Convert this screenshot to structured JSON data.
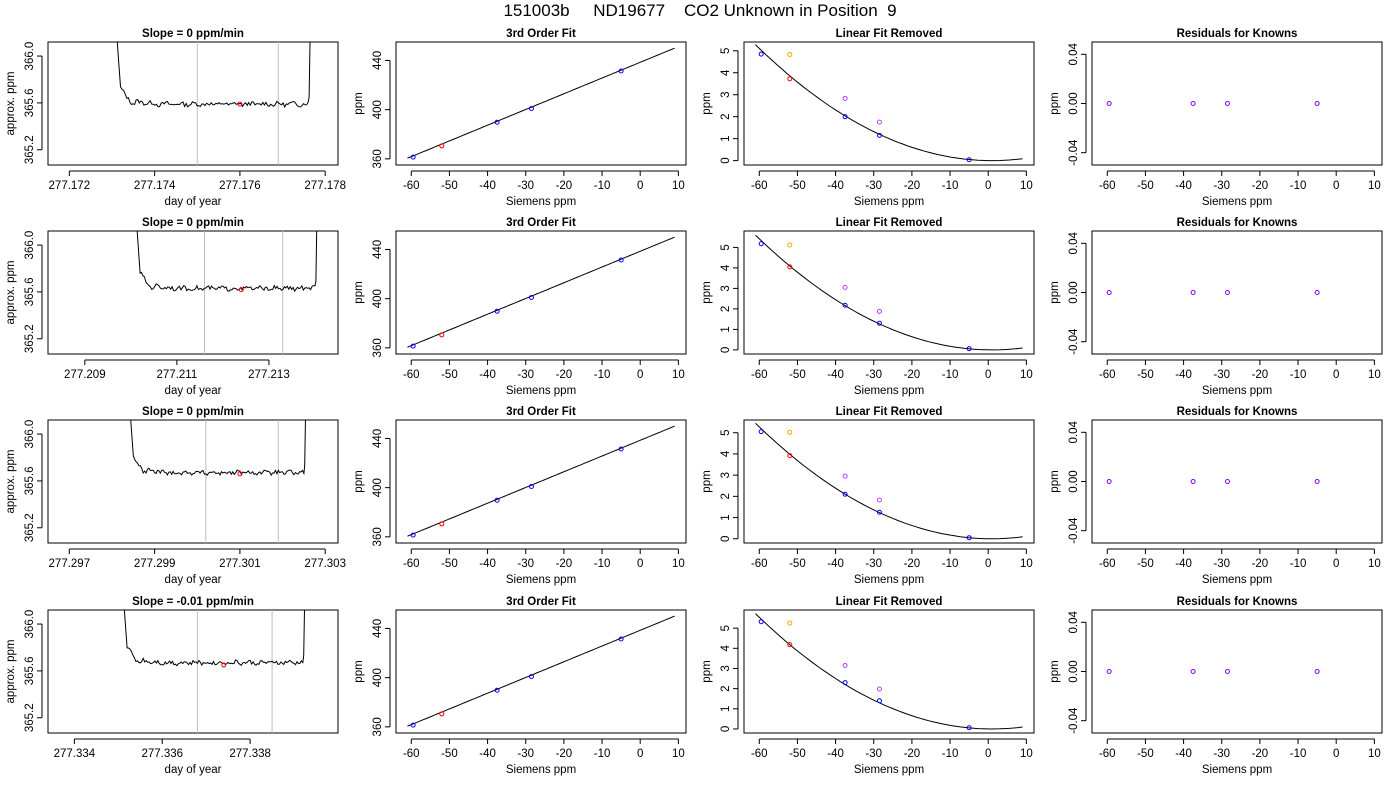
{
  "figure_title": "151003b     ND19677    CO2 Unknown in Position  9",
  "colors": {
    "trace": "#000000",
    "vline": "#bebebe",
    "red_point": "#ff0000",
    "blue_point": "#0000ff",
    "orange_point": "#ffa500",
    "magenta_point": "#c040ff",
    "resid_point": "#8000ff"
  },
  "chart_data": [
    {
      "type": "line",
      "title": "Slope =  0  ppm/min",
      "xlabel": "day of year",
      "ylabel": "approx. ppm",
      "xlim": [
        277.1715,
        277.1783
      ],
      "ylim": [
        365.07,
        366.12
      ],
      "xticks": [
        277.172,
        277.174,
        277.176,
        277.178
      ],
      "yticks": [
        365.2,
        365.6,
        366.0
      ],
      "vlines": [
        277.175,
        277.1769
      ],
      "start": 277.1732,
      "end": 277.1776,
      "level": 365.59,
      "marker": {
        "x": 277.176,
        "y": 365.59
      }
    },
    {
      "type": "line",
      "title": "3rd Order Fit",
      "xlabel": "Siemens ppm",
      "ylabel": "ppm",
      "xlim": [
        -64,
        12
      ],
      "ylim": [
        355,
        455
      ],
      "xticks": [
        -60,
        -50,
        -40,
        -30,
        -20,
        -10,
        0,
        10
      ],
      "yticks": [
        360,
        400,
        440
      ],
      "curve": {
        "x": [
          -61,
          9
        ],
        "y": [
          360.5,
          450.0
        ]
      },
      "red_points": [
        {
          "x": -52,
          "y": 370.5
        }
      ],
      "blue_points": [
        {
          "x": -59.5,
          "y": 361.4
        },
        {
          "x": -37.5,
          "y": 389.8
        },
        {
          "x": -28.5,
          "y": 400.9
        },
        {
          "x": -5,
          "y": 431.4
        }
      ]
    },
    {
      "type": "scatter",
      "title": "Linear Fit Removed",
      "xlabel": "Siemens ppm",
      "ylabel": "ppm",
      "xlim": [
        -64,
        12
      ],
      "ylim": [
        -0.2,
        5.4
      ],
      "xticks": [
        -60,
        -50,
        -40,
        -30,
        -20,
        -10,
        0,
        10
      ],
      "yticks": [
        0,
        1,
        2,
        3,
        4,
        5
      ],
      "curve": {
        "x": [
          -61,
          9
        ],
        "y": [
          5.28,
          0.12
        ]
      },
      "red_points": [
        {
          "x": -52,
          "y": 3.72
        }
      ],
      "blue_points": [
        {
          "x": -59.5,
          "y": 4.85
        },
        {
          "x": -37.5,
          "y": 2.0
        },
        {
          "x": -28.5,
          "y": 1.15
        },
        {
          "x": -5,
          "y": 0.04
        }
      ],
      "orange_points": [
        {
          "x": -52,
          "y": 4.83
        }
      ],
      "magenta_points": [
        {
          "x": -37.5,
          "y": 2.83
        },
        {
          "x": -28.5,
          "y": 1.75
        }
      ]
    },
    {
      "type": "scatter",
      "title": "Residuals for Knowns",
      "xlabel": "Siemens ppm",
      "ylabel": "ppm",
      "xlim": [
        -64,
        12
      ],
      "ylim": [
        -0.05,
        0.05
      ],
      "xticks": [
        -60,
        -50,
        -40,
        -30,
        -20,
        -10,
        0,
        10
      ],
      "yticks": [
        -0.04,
        0.0,
        0.04
      ],
      "points": [
        {
          "x": -59.5,
          "y": 0
        },
        {
          "x": -37.5,
          "y": 0
        },
        {
          "x": -28.5,
          "y": 0
        },
        {
          "x": -5,
          "y": 0
        }
      ]
    },
    {
      "type": "line",
      "title": "Slope =  0  ppm/min",
      "xlabel": "day of year",
      "ylabel": "approx. ppm",
      "xlim": [
        277.2082,
        277.2145
      ],
      "ylim": [
        365.07,
        366.12
      ],
      "xticks": [
        277.209,
        277.211,
        277.213
      ],
      "yticks": [
        365.2,
        365.6,
        366.0
      ],
      "vlines": [
        277.2116,
        277.2133
      ],
      "start": 277.2102,
      "end": 277.214,
      "level": 365.63,
      "marker": {
        "x": 277.2124,
        "y": 365.62
      }
    },
    {
      "type": "line",
      "title": "3rd Order Fit",
      "xlabel": "Siemens ppm",
      "ylabel": "ppm",
      "xlim": [
        -64,
        12
      ],
      "ylim": [
        355,
        455
      ],
      "xticks": [
        -60,
        -50,
        -40,
        -30,
        -20,
        -10,
        0,
        10
      ],
      "yticks": [
        360,
        400,
        440
      ],
      "curve": {
        "x": [
          -61,
          9
        ],
        "y": [
          360.5,
          450.0
        ]
      },
      "red_points": [
        {
          "x": -52,
          "y": 370.5
        }
      ],
      "blue_points": [
        {
          "x": -59.5,
          "y": 361.4
        },
        {
          "x": -37.5,
          "y": 389.8
        },
        {
          "x": -28.5,
          "y": 400.9
        },
        {
          "x": -5,
          "y": 431.4
        }
      ]
    },
    {
      "type": "scatter",
      "title": "Linear Fit Removed",
      "xlabel": "Siemens ppm",
      "ylabel": "ppm",
      "xlim": [
        -64,
        12
      ],
      "ylim": [
        -0.2,
        5.8
      ],
      "xticks": [
        -60,
        -50,
        -40,
        -30,
        -20,
        -10,
        0,
        10
      ],
      "yticks": [
        0,
        1,
        2,
        3,
        4,
        5
      ],
      "curve": {
        "x": [
          -61,
          9
        ],
        "y": [
          5.6,
          0.14
        ]
      },
      "red_points": [
        {
          "x": -52,
          "y": 4.05
        }
      ],
      "blue_points": [
        {
          "x": -59.5,
          "y": 5.18
        },
        {
          "x": -37.5,
          "y": 2.18
        },
        {
          "x": -28.5,
          "y": 1.3
        },
        {
          "x": -5,
          "y": 0.06
        }
      ],
      "orange_points": [
        {
          "x": -52,
          "y": 5.12
        }
      ],
      "magenta_points": [
        {
          "x": -37.5,
          "y": 3.05
        },
        {
          "x": -28.5,
          "y": 1.88
        }
      ]
    },
    {
      "type": "scatter",
      "title": "Residuals for Knowns",
      "xlabel": "Siemens ppm",
      "ylabel": "ppm",
      "xlim": [
        -64,
        12
      ],
      "ylim": [
        -0.05,
        0.05
      ],
      "xticks": [
        -60,
        -50,
        -40,
        -30,
        -20,
        -10,
        0,
        10
      ],
      "yticks": [
        -0.04,
        0.0,
        0.04
      ],
      "points": [
        {
          "x": -59.5,
          "y": 0
        },
        {
          "x": -37.5,
          "y": 0
        },
        {
          "x": -28.5,
          "y": 0
        },
        {
          "x": -5,
          "y": 0
        }
      ]
    },
    {
      "type": "line",
      "title": "Slope =  0  ppm/min",
      "xlabel": "day of year",
      "ylabel": "approx. ppm",
      "xlim": [
        277.2965,
        277.3033
      ],
      "ylim": [
        365.07,
        366.12
      ],
      "xticks": [
        277.297,
        277.299,
        277.301,
        277.303
      ],
      "yticks": [
        365.2,
        365.6,
        366.0
      ],
      "vlines": [
        277.3002,
        277.3019
      ],
      "start": 277.2985,
      "end": 277.3025,
      "level": 365.67,
      "marker": {
        "x": 277.301,
        "y": 365.66
      }
    },
    {
      "type": "line",
      "title": "3rd Order Fit",
      "xlabel": "Siemens ppm",
      "ylabel": "ppm",
      "xlim": [
        -64,
        12
      ],
      "ylim": [
        355,
        455
      ],
      "xticks": [
        -60,
        -50,
        -40,
        -30,
        -20,
        -10,
        0,
        10
      ],
      "yticks": [
        360,
        400,
        440
      ],
      "curve": {
        "x": [
          -61,
          9
        ],
        "y": [
          360.5,
          450.0
        ]
      },
      "red_points": [
        {
          "x": -52,
          "y": 370.5
        }
      ],
      "blue_points": [
        {
          "x": -59.5,
          "y": 361.4
        },
        {
          "x": -37.5,
          "y": 389.8
        },
        {
          "x": -28.5,
          "y": 400.9
        },
        {
          "x": -5,
          "y": 431.4
        }
      ]
    },
    {
      "type": "scatter",
      "title": "Linear Fit Removed",
      "xlabel": "Siemens ppm",
      "ylabel": "ppm",
      "xlim": [
        -64,
        12
      ],
      "ylim": [
        -0.2,
        5.6
      ],
      "xticks": [
        -60,
        -50,
        -40,
        -30,
        -20,
        -10,
        0,
        10
      ],
      "yticks": [
        0,
        1,
        2,
        3,
        4,
        5
      ],
      "curve": {
        "x": [
          -61,
          9
        ],
        "y": [
          5.45,
          0.13
        ]
      },
      "red_points": [
        {
          "x": -52,
          "y": 3.92
        }
      ],
      "blue_points": [
        {
          "x": -59.5,
          "y": 5.05
        },
        {
          "x": -37.5,
          "y": 2.1
        },
        {
          "x": -28.5,
          "y": 1.25
        },
        {
          "x": -5,
          "y": 0.05
        }
      ],
      "orange_points": [
        {
          "x": -52,
          "y": 5.02
        }
      ],
      "magenta_points": [
        {
          "x": -37.5,
          "y": 2.95
        },
        {
          "x": -28.5,
          "y": 1.82
        }
      ]
    },
    {
      "type": "scatter",
      "title": "Residuals for Knowns",
      "xlabel": "Siemens ppm",
      "ylabel": "ppm",
      "xlim": [
        -64,
        12
      ],
      "ylim": [
        -0.05,
        0.05
      ],
      "xticks": [
        -60,
        -50,
        -40,
        -30,
        -20,
        -10,
        0,
        10
      ],
      "yticks": [
        -0.04,
        0.0,
        0.04
      ],
      "points": [
        {
          "x": -59.5,
          "y": 0
        },
        {
          "x": -37.5,
          "y": 0
        },
        {
          "x": -28.5,
          "y": 0
        },
        {
          "x": -5,
          "y": 0
        }
      ]
    },
    {
      "type": "line",
      "title": "Slope =  -0.01  ppm/min",
      "xlabel": "day of year",
      "ylabel": "approx. ppm",
      "xlim": [
        277.3334,
        277.34
      ],
      "ylim": [
        365.07,
        366.12
      ],
      "xticks": [
        277.334,
        277.336,
        277.338
      ],
      "yticks": [
        365.2,
        365.6,
        366.0
      ],
      "vlines": [
        277.3368,
        277.3385
      ],
      "start": 277.3352,
      "end": 277.3392,
      "level": 365.67,
      "marker": {
        "x": 277.3374,
        "y": 365.65
      }
    },
    {
      "type": "line",
      "title": "3rd Order Fit",
      "xlabel": "Siemens ppm",
      "ylabel": "ppm",
      "xlim": [
        -64,
        12
      ],
      "ylim": [
        355,
        455
      ],
      "xticks": [
        -60,
        -50,
        -40,
        -30,
        -20,
        -10,
        0,
        10
      ],
      "yticks": [
        360,
        400,
        440
      ],
      "curve": {
        "x": [
          -61,
          9
        ],
        "y": [
          360.5,
          450.0
        ]
      },
      "red_points": [
        {
          "x": -52,
          "y": 370.5
        }
      ],
      "blue_points": [
        {
          "x": -59.5,
          "y": 361.4
        },
        {
          "x": -37.5,
          "y": 389.8
        },
        {
          "x": -28.5,
          "y": 400.9
        },
        {
          "x": -5,
          "y": 431.4
        }
      ]
    },
    {
      "type": "scatter",
      "title": "Linear Fit Removed",
      "xlabel": "Siemens ppm",
      "ylabel": "ppm",
      "xlim": [
        -64,
        12
      ],
      "ylim": [
        -0.2,
        5.9
      ],
      "xticks": [
        -60,
        -50,
        -40,
        -30,
        -20,
        -10,
        0,
        10
      ],
      "yticks": [
        0,
        1,
        2,
        3,
        4,
        5
      ],
      "curve": {
        "x": [
          -61,
          9
        ],
        "y": [
          5.72,
          0.14
        ]
      },
      "red_points": [
        {
          "x": -52,
          "y": 4.18
        }
      ],
      "blue_points": [
        {
          "x": -59.5,
          "y": 5.32
        },
        {
          "x": -37.5,
          "y": 2.3
        },
        {
          "x": -28.5,
          "y": 1.4
        },
        {
          "x": -5,
          "y": 0.06
        }
      ],
      "orange_points": [
        {
          "x": -52,
          "y": 5.25
        }
      ],
      "magenta_points": [
        {
          "x": -37.5,
          "y": 3.15
        },
        {
          "x": -28.5,
          "y": 1.98
        }
      ]
    },
    {
      "type": "scatter",
      "title": "Residuals for Knowns",
      "xlabel": "Siemens ppm",
      "ylabel": "ppm",
      "xlim": [
        -64,
        12
      ],
      "ylim": [
        -0.05,
        0.05
      ],
      "xticks": [
        -60,
        -50,
        -40,
        -30,
        -20,
        -10,
        0,
        10
      ],
      "yticks": [
        -0.04,
        0.0,
        0.04
      ],
      "points": [
        {
          "x": -59.5,
          "y": 0
        },
        {
          "x": -37.5,
          "y": 0
        },
        {
          "x": -28.5,
          "y": 0
        },
        {
          "x": -5,
          "y": 0
        }
      ]
    }
  ]
}
